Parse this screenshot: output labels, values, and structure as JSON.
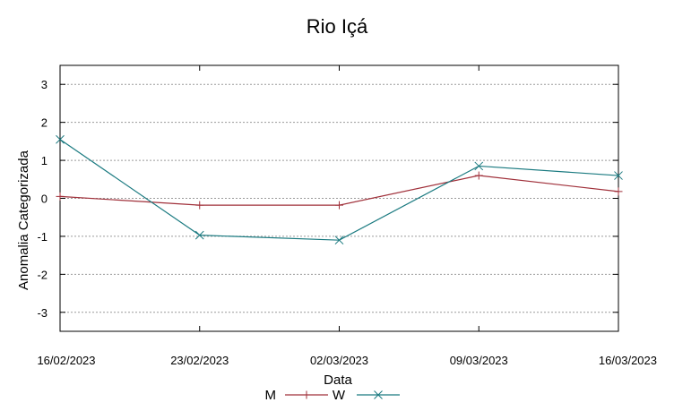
{
  "chart_data": {
    "type": "line",
    "title": "Rio Içá",
    "xlabel": "Data",
    "ylabel": "Anomalia Categorizada",
    "categories": [
      "16/02/2023",
      "23/02/2023",
      "02/03/2023",
      "09/03/2023",
      "16/03/2023"
    ],
    "ylim": [
      -3.5,
      3.5
    ],
    "yticks": [
      3,
      2,
      1,
      0,
      -1,
      -2,
      -3
    ],
    "ytick_labels": [
      "3",
      "2",
      "1",
      "0",
      "-1",
      "-2",
      "-3"
    ],
    "grid": true,
    "legend_position": "bottom-center",
    "series": [
      {
        "name": "M",
        "marker": "plus",
        "color": "#a0303a",
        "values": [
          0.05,
          -0.18,
          -0.18,
          0.6,
          0.18
        ]
      },
      {
        "name": "W",
        "marker": "x",
        "color": "#1a7a80",
        "values": [
          1.55,
          -0.97,
          -1.1,
          0.85,
          0.6
        ]
      }
    ]
  }
}
